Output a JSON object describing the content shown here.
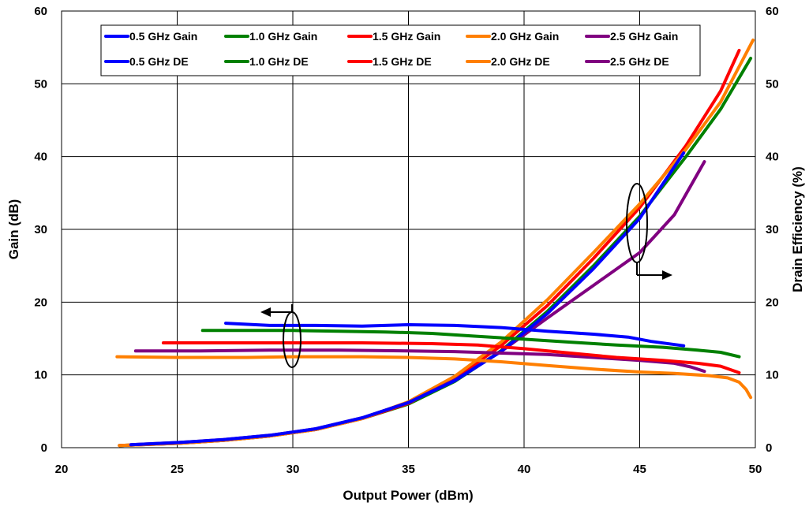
{
  "chart_data": {
    "type": "line",
    "xlabel": "Output Power (dBm)",
    "ylabel_left": "Gain (dB)",
    "ylabel_right": "Drain Efficiency (%)",
    "xlim": [
      20,
      50
    ],
    "ylim_left": [
      0,
      60
    ],
    "ylim_right": [
      0,
      60
    ],
    "x_ticks": [
      "20",
      "25",
      "30",
      "35",
      "40",
      "45",
      "50"
    ],
    "y_ticks_left": [
      "0",
      "10",
      "20",
      "30",
      "40",
      "50",
      "60"
    ],
    "y_ticks_right": [
      "0",
      "10",
      "20",
      "30",
      "40",
      "50",
      "60"
    ],
    "grid": true,
    "legend_position": "top",
    "colors": {
      "0.5 GHz": "#0000ff",
      "1.0 GHz": "#008000",
      "1.5 GHz": "#ff0000",
      "2.0 GHz": "#ff7f00",
      "2.5 GHz": "#800080"
    },
    "series": [
      {
        "name": "0.5 GHz Gain",
        "axis": "left",
        "color": "#0000ff",
        "x": [
          27.1,
          29,
          31,
          33,
          35,
          37,
          39,
          41,
          43,
          44.5,
          45.5,
          46.9
        ],
        "y": [
          17.1,
          16.8,
          16.8,
          16.7,
          16.9,
          16.8,
          16.5,
          16.0,
          15.6,
          15.2,
          14.6,
          14.0
        ]
      },
      {
        "name": "1.0 GHz Gain",
        "axis": "left",
        "color": "#008000",
        "x": [
          26.1,
          28,
          30,
          32,
          34,
          36,
          38,
          40,
          42,
          44,
          46,
          47.5,
          48.5,
          49.3
        ],
        "y": [
          16.1,
          16.1,
          16.1,
          16.0,
          15.9,
          15.7,
          15.3,
          14.9,
          14.5,
          14.1,
          13.8,
          13.4,
          13.1,
          12.5
        ]
      },
      {
        "name": "1.5 GHz Gain",
        "axis": "left",
        "color": "#ff0000",
        "x": [
          24.4,
          27,
          30,
          33,
          36,
          38,
          40,
          42,
          44,
          46,
          47.5,
          48.5,
          49.3
        ],
        "y": [
          14.4,
          14.4,
          14.4,
          14.4,
          14.3,
          14.1,
          13.6,
          13.0,
          12.4,
          12.0,
          11.6,
          11.2,
          10.3
        ]
      },
      {
        "name": "2.0 GHz Gain",
        "axis": "left",
        "color": "#ff7f00",
        "x": [
          22.4,
          25,
          28,
          30,
          33,
          35,
          37,
          39,
          41,
          43,
          45,
          46.5,
          48,
          48.8,
          49.3,
          49.6,
          49.8
        ],
        "y": [
          12.5,
          12.4,
          12.4,
          12.5,
          12.5,
          12.4,
          12.2,
          11.8,
          11.3,
          10.8,
          10.4,
          10.2,
          9.9,
          9.6,
          9.0,
          8.0,
          6.9
        ]
      },
      {
        "name": "2.5 GHz Gain",
        "axis": "left",
        "color": "#800080",
        "x": [
          23.2,
          26,
          29,
          32,
          35,
          37,
          39,
          41,
          43,
          45,
          46.5,
          47.2,
          47.8
        ],
        "y": [
          13.3,
          13.3,
          13.4,
          13.4,
          13.3,
          13.2,
          13.0,
          12.8,
          12.4,
          12.0,
          11.6,
          11.1,
          10.5
        ]
      },
      {
        "name": "0.5 GHz DE",
        "axis": "right",
        "color": "#0000ff",
        "x": [
          23,
          25,
          27,
          29,
          31,
          33,
          35,
          37,
          39,
          41,
          43,
          45,
          46.9
        ],
        "y": [
          0.4,
          0.7,
          1.1,
          1.7,
          2.6,
          4.1,
          6.2,
          9.2,
          13.2,
          18.4,
          24.6,
          31.5,
          40.5
        ]
      },
      {
        "name": "1.0 GHz DE",
        "axis": "right",
        "color": "#008000",
        "x": [
          22.5,
          25,
          27,
          29,
          31,
          33,
          35,
          37,
          39,
          41,
          43,
          45,
          47,
          48.5,
          49.8
        ],
        "y": [
          0.3,
          0.6,
          1.0,
          1.6,
          2.5,
          4.0,
          6.0,
          9.1,
          13.3,
          18.7,
          25.0,
          31.8,
          40.0,
          46.5,
          53.5
        ]
      },
      {
        "name": "1.5 GHz DE",
        "axis": "right",
        "color": "#ff0000",
        "x": [
          22.5,
          25,
          27,
          29,
          31,
          33,
          35,
          37,
          39,
          41,
          43,
          45,
          47,
          48.5,
          49.3
        ],
        "y": [
          0.3,
          0.6,
          1.0,
          1.6,
          2.5,
          4.0,
          6.1,
          9.5,
          14.0,
          19.5,
          26.0,
          33.0,
          41.5,
          49.0,
          54.6
        ]
      },
      {
        "name": "2.0 GHz DE",
        "axis": "right",
        "color": "#ff7f00",
        "x": [
          22.5,
          25,
          27,
          29,
          31,
          33,
          35,
          37,
          39,
          41,
          43,
          45,
          47,
          48.5,
          49.9
        ],
        "y": [
          0.3,
          0.6,
          1.0,
          1.6,
          2.5,
          4.0,
          6.3,
          9.8,
          14.5,
          20.3,
          26.8,
          33.5,
          41.0,
          47.5,
          56.0
        ]
      },
      {
        "name": "2.5 GHz DE",
        "axis": "right",
        "color": "#800080",
        "x": [
          23,
          25,
          27,
          29,
          31,
          33,
          35,
          37,
          39,
          41,
          43,
          45,
          46.5,
          47.8
        ],
        "y": [
          0.4,
          0.7,
          1.1,
          1.7,
          2.6,
          4.1,
          6.2,
          9.3,
          13.2,
          17.8,
          22.3,
          26.8,
          32.0,
          39.3
        ]
      }
    ]
  }
}
